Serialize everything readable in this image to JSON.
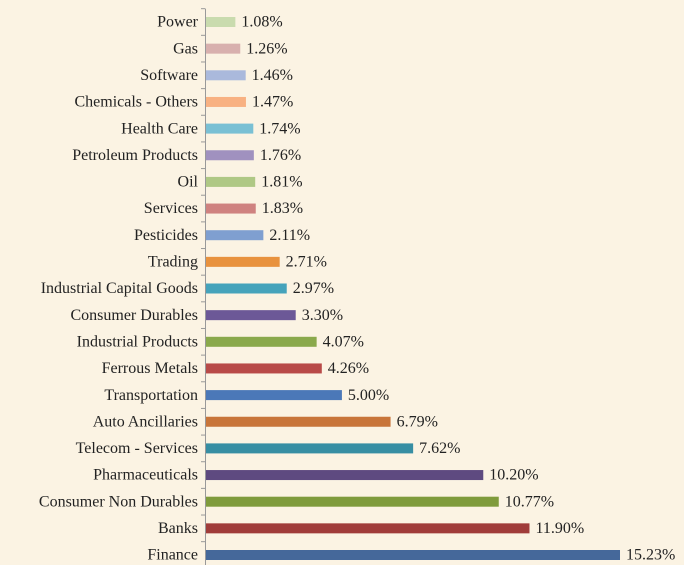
{
  "chart_data": {
    "type": "bar",
    "categories": [
      "Power",
      "Gas",
      "Software",
      "Chemicals - Others",
      "Health Care",
      "Petroleum Products",
      "Oil",
      "Services",
      "Pesticides",
      "Trading",
      "Industrial Capital Goods",
      "Consumer Durables",
      "Industrial Products",
      "Ferrous Metals",
      "Transportation",
      "Auto Ancillaries",
      "Telecom - Services",
      "Pharmaceuticals",
      "Consumer Non Durables",
      "Banks",
      "Finance"
    ],
    "values": [
      1.08,
      1.26,
      1.46,
      1.47,
      1.74,
      1.76,
      1.81,
      1.83,
      2.11,
      2.71,
      2.97,
      3.3,
      4.07,
      4.26,
      5.0,
      6.79,
      7.62,
      10.2,
      10.77,
      11.9,
      15.23
    ],
    "value_labels": [
      "1.08%",
      "1.26%",
      "1.46%",
      "1.47%",
      "1.74%",
      "1.76%",
      "1.81%",
      "1.83%",
      "2.11%",
      "2.71%",
      "2.97%",
      "3.30%",
      "4.07%",
      "4.26%",
      "5.00%",
      "6.79%",
      "7.62%",
      "10.20%",
      "10.77%",
      "11.90%",
      "15.23%"
    ],
    "colors": [
      "#c9dbae",
      "#d8b0ae",
      "#aab9dc",
      "#f8b182",
      "#7ac0d4",
      "#a091bf",
      "#afc885",
      "#cf8280",
      "#7f9fd0",
      "#e8923e",
      "#45a3bb",
      "#6c5897",
      "#8aa94c",
      "#b84a48",
      "#4b78b8",
      "#c8753a",
      "#378ea3",
      "#5e4a80",
      "#7f9b3c",
      "#a03c3a",
      "#45689a"
    ]
  }
}
